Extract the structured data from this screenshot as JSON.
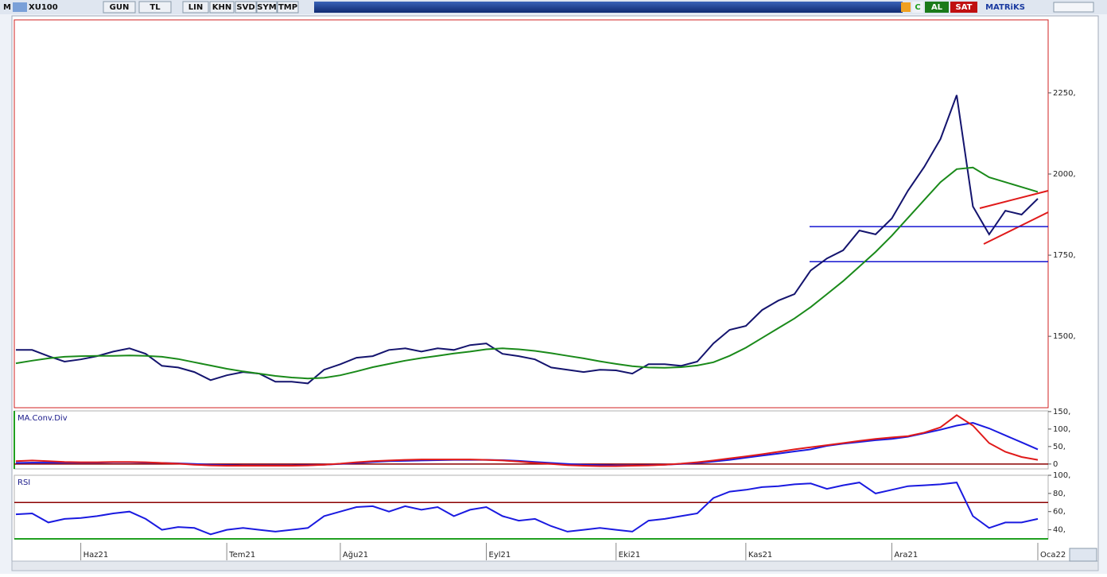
{
  "toolbar": {
    "logo": "M",
    "symbol": "XU100",
    "buttons": [
      "GUN",
      "TL",
      "LIN",
      "KHN",
      "SVD",
      "SYM",
      "TMP"
    ],
    "right_buttons": [
      "C",
      "AL",
      "SAT"
    ],
    "brand": "MATRiKS"
  },
  "chart_data": [
    {
      "type": "line",
      "categories": [
        null,
        null,
        null,
        null,
        "Haz21",
        null,
        null,
        null,
        null,
        null,
        null,
        null,
        null,
        "Tem21",
        null,
        null,
        null,
        null,
        null,
        null,
        "Ağu21",
        null,
        null,
        null,
        null,
        null,
        null,
        null,
        null,
        "Eyl21",
        null,
        null,
        null,
        null,
        null,
        null,
        null,
        "Eki21",
        null,
        null,
        null,
        null,
        null,
        null,
        null,
        "Kas21",
        null,
        null,
        null,
        null,
        null,
        null,
        null,
        null,
        "Ara21",
        null,
        null,
        null,
        null,
        null,
        null,
        null,
        null,
        "Oca22"
      ],
      "series": [
        {
          "color": "#14146e",
          "values": [
            1458,
            1458,
            1439,
            1422,
            1429,
            1439,
            1453,
            1463,
            1446,
            1409,
            1404,
            1390,
            1365,
            1380,
            1390,
            1385,
            1360,
            1360,
            1355,
            1397,
            1414,
            1434,
            1439,
            1458,
            1463,
            1453,
            1463,
            1458,
            1473,
            1478,
            1446,
            1439,
            1429,
            1404,
            1397,
            1390,
            1397,
            1395,
            1385,
            1414,
            1414,
            1409,
            1422,
            1478,
            1520,
            1532,
            1581,
            1610,
            1630,
            1703,
            1740,
            1765,
            1826,
            1814,
            1863,
            1949,
            2022,
            2108,
            2243,
            1900,
            1814,
            1887,
            1875,
            1924
          ]
        },
        {
          "color": "#1a8a1a",
          "values": [
            1417,
            1425,
            1432,
            1437,
            1439,
            1440,
            1440,
            1441,
            1440,
            1437,
            1430,
            1420,
            1410,
            1400,
            1392,
            1385,
            1378,
            1373,
            1370,
            1372,
            1380,
            1392,
            1405,
            1415,
            1425,
            1433,
            1440,
            1447,
            1453,
            1460,
            1463,
            1460,
            1455,
            1448,
            1440,
            1432,
            1423,
            1415,
            1408,
            1404,
            1403,
            1405,
            1410,
            1420,
            1440,
            1465,
            1495,
            1525,
            1555,
            1590,
            1630,
            1670,
            1715,
            1760,
            1810,
            1865,
            1920,
            1975,
            2015,
            2020,
            1990,
            1975,
            1960,
            1945
          ]
        }
      ],
      "hlines": [
        1838,
        1730
      ],
      "hline_color": "#1414d0",
      "ylim": [
        1280,
        2475
      ],
      "yticks": [
        {
          "value": 1500,
          "label": "1500,"
        },
        {
          "value": 1750,
          "label": "1750,"
        },
        {
          "value": 2000,
          "label": "2000,"
        },
        {
          "value": 2250,
          "label": "2250,"
        }
      ]
    },
    {
      "type": "line",
      "title": "MA.Conv.Div",
      "series": [
        {
          "color": "#1a1ae0",
          "values": [
            3,
            4,
            4,
            4,
            4,
            4,
            5,
            5,
            4,
            3,
            2,
            0,
            -2,
            -3,
            -4,
            -4,
            -4,
            -4,
            -3,
            -2,
            0,
            3,
            6,
            8,
            9,
            10,
            11,
            12,
            12,
            12,
            11,
            9,
            6,
            3,
            0,
            -2,
            -3,
            -4,
            -4,
            -3,
            -2,
            0,
            3,
            7,
            12,
            18,
            24,
            30,
            36,
            42,
            52,
            58,
            63,
            68,
            72,
            78,
            88,
            98,
            110,
            118,
            102,
            82,
            62,
            42
          ]
        },
        {
          "color": "#e01a1a",
          "values": [
            8,
            10,
            8,
            6,
            5,
            5,
            6,
            6,
            5,
            3,
            1,
            -2,
            -4,
            -5,
            -5,
            -5,
            -5,
            -5,
            -4,
            -2,
            1,
            5,
            8,
            10,
            12,
            13,
            13,
            13,
            13,
            12,
            10,
            7,
            3,
            0,
            -3,
            -5,
            -6,
            -6,
            -5,
            -4,
            -2,
            1,
            5,
            10,
            16,
            22,
            28,
            35,
            42,
            48,
            54,
            60,
            66,
            72,
            76,
            80,
            90,
            105,
            140,
            110,
            60,
            35,
            20,
            12
          ]
        }
      ],
      "reference_line": 0,
      "reference_color": "#8b0000",
      "ylim": [
        -14,
        152
      ],
      "yticks": [
        0,
        {
          "value": 50,
          "label": "50,"
        },
        {
          "value": 100,
          "label": "100,"
        },
        {
          "value": 150,
          "label": "150,"
        }
      ]
    },
    {
      "type": "line",
      "title": "RSI",
      "series": [
        {
          "color": "#1a1ae0",
          "values": [
            57,
            58,
            48,
            52,
            53,
            55,
            58,
            60,
            52,
            40,
            43,
            42,
            35,
            40,
            42,
            40,
            38,
            40,
            42,
            55,
            60,
            65,
            66,
            60,
            66,
            62,
            65,
            55,
            62,
            65,
            55,
            50,
            52,
            44,
            38,
            40,
            42,
            40,
            38,
            50,
            52,
            55,
            58,
            75,
            82,
            84,
            87,
            88,
            90,
            91,
            85,
            89,
            92,
            80,
            84,
            88,
            89,
            90,
            92,
            55,
            42,
            48,
            48,
            52
          ]
        }
      ],
      "reference_line": 70,
      "reference_color": "#8b0000",
      "ylim": [
        30,
        100
      ],
      "yticks": [
        {
          "value": 40,
          "label": "40,"
        },
        {
          "value": 60,
          "label": "60,"
        },
        {
          "value": 80,
          "label": "80,"
        },
        {
          "value": 100,
          "label": "100,"
        }
      ]
    }
  ]
}
